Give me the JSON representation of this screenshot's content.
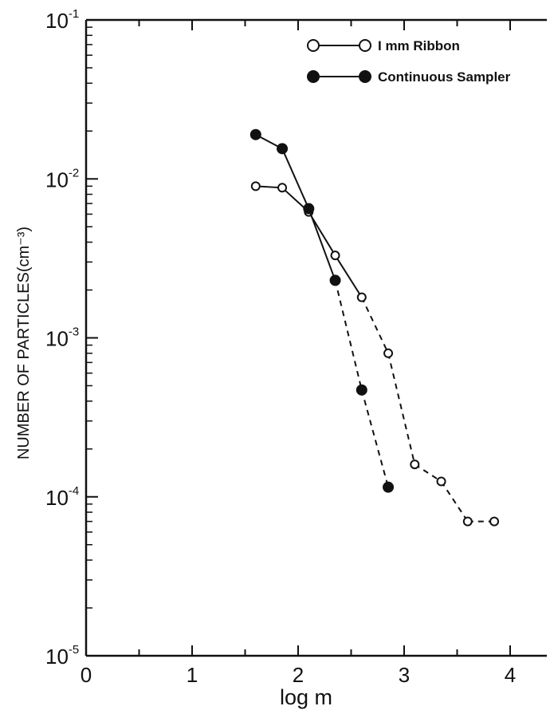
{
  "chart_data": {
    "type": "line",
    "xlabel": "log  m",
    "ylabel": "NUMBER OF PARTICLES(cm⁻³)",
    "xlim": [
      0,
      4.5
    ],
    "ylim": [
      1e-05,
      0.1
    ],
    "y_scale": "log",
    "x_ticks": [
      "0",
      "1",
      "2",
      "3",
      "4"
    ],
    "y_ticks": [
      {
        "base": "10",
        "exp": "-5",
        "value": 1e-05
      },
      {
        "base": "10",
        "exp": "-4",
        "value": 0.0001
      },
      {
        "base": "10",
        "exp": "-3",
        "value": 0.001
      },
      {
        "base": "10",
        "exp": "-2",
        "value": 0.01
      },
      {
        "base": "10",
        "exp": "-1",
        "value": 0.1
      }
    ],
    "legend_position": "top-right",
    "series": [
      {
        "name": "I mm Ribbon",
        "marker": "open-circle",
        "x": [
          1.6,
          1.85,
          2.1,
          2.35,
          2.6,
          2.85,
          3.1,
          3.35,
          3.6,
          3.85
        ],
        "y": [
          0.009,
          0.0088,
          0.0062,
          0.0033,
          0.0018,
          0.0008,
          0.00016,
          0.000125,
          7e-05,
          7e-05
        ],
        "solid_until_index": 4
      },
      {
        "name": "Continuous Sampler",
        "marker": "filled-circle",
        "x": [
          1.6,
          1.85,
          2.1,
          2.35,
          2.6,
          2.85
        ],
        "y": [
          0.019,
          0.0155,
          0.0065,
          0.0023,
          0.00047,
          0.000115
        ],
        "solid_until_index": 3
      }
    ]
  }
}
